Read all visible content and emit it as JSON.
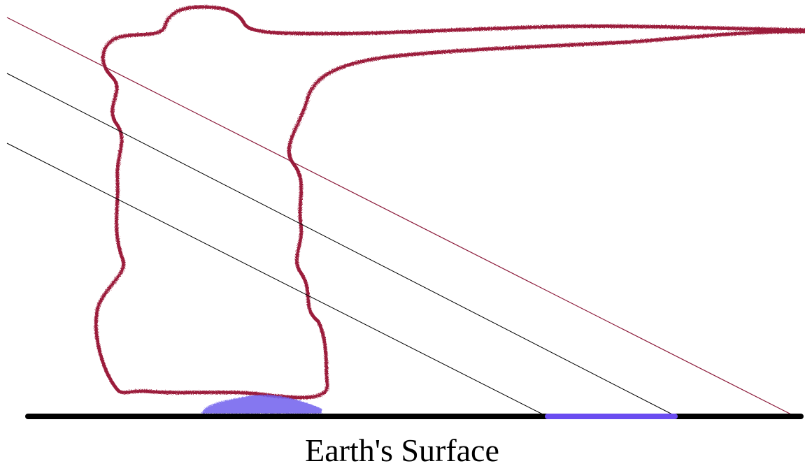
{
  "caption": "Earth's Surface"
}
